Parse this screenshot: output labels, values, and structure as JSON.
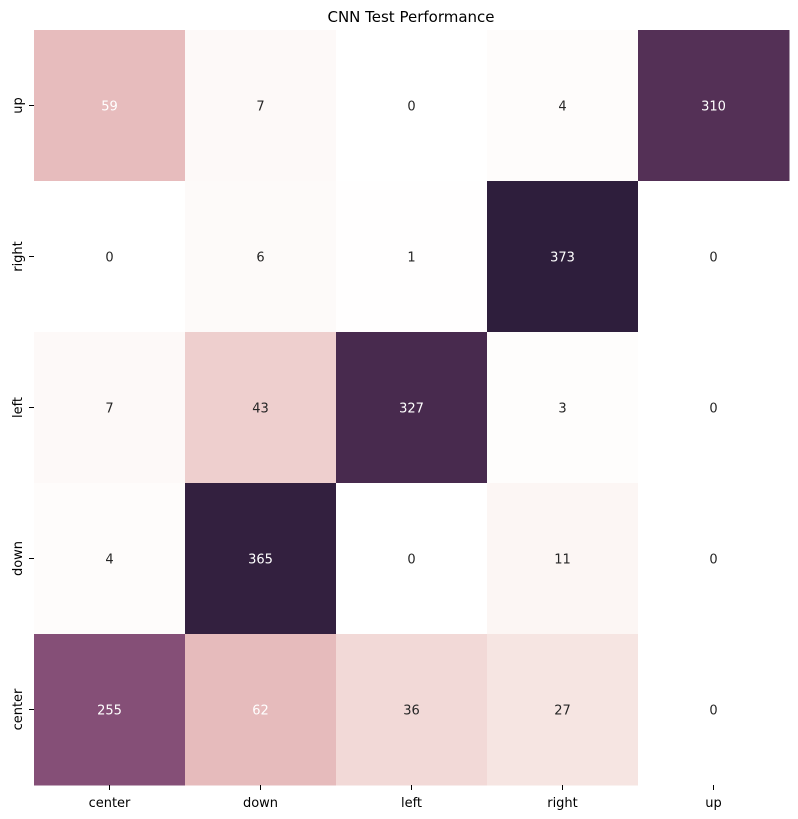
{
  "chart_data": {
    "type": "heatmap",
    "title": "CNN Test Performance",
    "x_categories": [
      "center",
      "down",
      "left",
      "right",
      "up"
    ],
    "y_categories": [
      "up",
      "right",
      "left",
      "down",
      "center"
    ],
    "values": [
      [
        59,
        7,
        0,
        4,
        310
      ],
      [
        0,
        6,
        1,
        373,
        0
      ],
      [
        7,
        43,
        327,
        3,
        0
      ],
      [
        4,
        365,
        0,
        11,
        0
      ],
      [
        255,
        62,
        36,
        27,
        0
      ]
    ],
    "colorbar": false,
    "annotations": true,
    "colors": {
      "low": "#ffffff",
      "mid_light": "#f2d9d3",
      "mid": "#e0a8ae",
      "mid_dark": "#c07c9c",
      "high": "#2e1e3c",
      "text_light": "#ffffff",
      "text_dark": "#262626"
    }
  }
}
